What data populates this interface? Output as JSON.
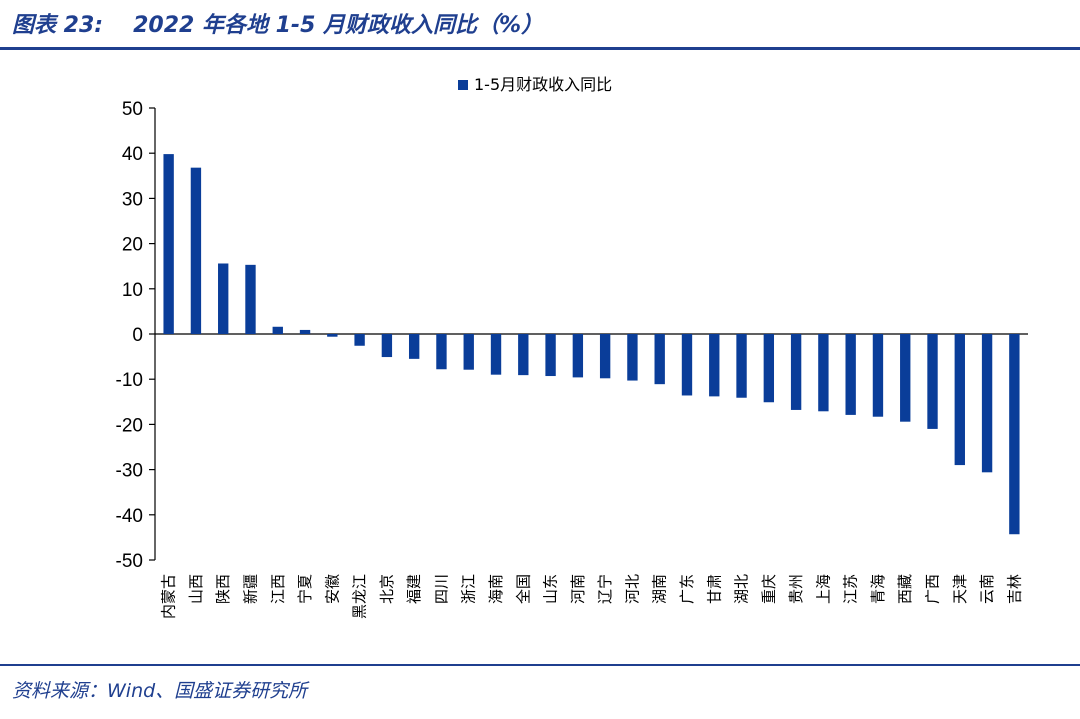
{
  "header": {
    "figure_label": "图表 23:",
    "title": "2022 年各地 1-5 月财政收入同比（%）"
  },
  "footer": {
    "source": "资料来源：Wind、国盛证券研究所"
  },
  "chart_data": {
    "type": "bar",
    "title": "",
    "xlabel": "",
    "ylabel": "",
    "ylim": [
      -50,
      50
    ],
    "yticks": [
      50,
      40,
      30,
      20,
      10,
      0,
      -10,
      -20,
      -30,
      -40,
      -50
    ],
    "legend_position": "top-center",
    "color": "#0a3d99",
    "categories": [
      "内蒙古",
      "山西",
      "陕西",
      "新疆",
      "江西",
      "宁夏",
      "安徽",
      "黑龙江",
      "北京",
      "福建",
      "四川",
      "浙江",
      "海南",
      "全国",
      "山东",
      "河南",
      "辽宁",
      "河北",
      "湖南",
      "广东",
      "甘肃",
      "湖北",
      "重庆",
      "贵州",
      "上海",
      "江苏",
      "青海",
      "西藏",
      "广西",
      "天津",
      "云南",
      "吉林"
    ],
    "series": [
      {
        "name": "1-5月财政收入同比",
        "values": [
          39.8,
          36.8,
          15.6,
          15.3,
          1.6,
          0.9,
          -0.6,
          -2.6,
          -5.1,
          -5.5,
          -7.8,
          -7.9,
          -9.0,
          -9.1,
          -9.3,
          -9.6,
          -9.8,
          -10.3,
          -11.1,
          -13.6,
          -13.8,
          -14.1,
          -15.1,
          -16.8,
          -17.1,
          -17.9,
          -18.3,
          -19.4,
          -21.0,
          -29.0,
          -30.6,
          -44.3
        ]
      }
    ]
  }
}
